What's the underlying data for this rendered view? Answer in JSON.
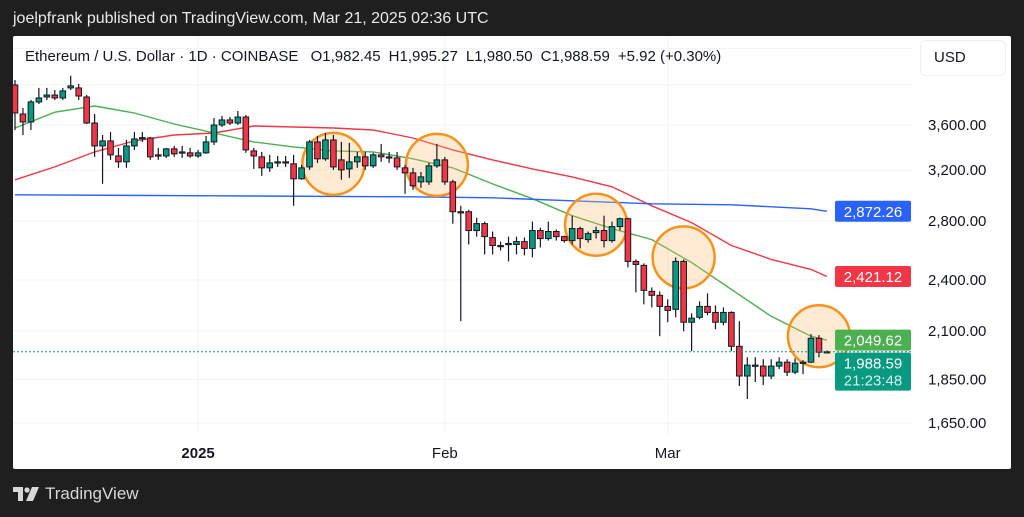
{
  "header": {
    "published_text": "joelpfrank published on TradingView.com, Mar 21, 2025 02:36 UTC"
  },
  "legend": {
    "symbol": "Ethereum / U.S. Dollar · 1D · COINBASE",
    "open": "O1,982.45",
    "high": "H1,995.27",
    "low": "L1,980.50",
    "close": "C1,988.59",
    "change": "+5.92 (+0.30%)"
  },
  "currency_button": "USD",
  "footer": {
    "brand": "TradingView"
  },
  "colors": {
    "up": "#089981",
    "down": "#f23645",
    "ma_fast": "#4caf50",
    "ma_mid": "#f23645",
    "ma_slow": "#2962ff",
    "annotation": "#f7931a",
    "last_price": "#089981"
  },
  "chart_data": {
    "type": "candlestick",
    "scale": "log",
    "grid": true,
    "y_ticks": [
      4400,
      4000,
      3600,
      3200,
      2800,
      2400,
      2100,
      1850,
      1650
    ],
    "y_tick_labels": [
      "",
      "",
      "3,600.00",
      "3,200.00",
      "2,800.00",
      "2,400.00",
      "2,100.00",
      "1,850.00",
      "1,650.00"
    ],
    "x_labels": [
      {
        "date": "2025-01-01",
        "label": "2025",
        "bold": true
      },
      {
        "date": "2025-02-01",
        "label": "Feb",
        "bold": false
      },
      {
        "date": "2025-03-01",
        "label": "Mar",
        "bold": false
      }
    ],
    "candles_fields": [
      "date",
      "open",
      "high",
      "low",
      "close"
    ],
    "candles": [
      [
        "2024-12-09",
        3998,
        4050,
        3553,
        3715
      ],
      [
        "2024-12-10",
        3705,
        3764,
        3507,
        3629
      ],
      [
        "2024-12-11",
        3629,
        3844,
        3553,
        3824
      ],
      [
        "2024-12-12",
        3824,
        3967,
        3804,
        3864
      ],
      [
        "2024-12-13",
        3874,
        3967,
        3844,
        3894
      ],
      [
        "2024-12-14",
        3894,
        3946,
        3844,
        3864
      ],
      [
        "2024-12-15",
        3864,
        3967,
        3844,
        3936
      ],
      [
        "2024-12-16",
        3967,
        4095,
        3946,
        3988
      ],
      [
        "2024-12-17",
        3967,
        4008,
        3844,
        3884
      ],
      [
        "2024-12-18",
        3874,
        3894,
        3610,
        3619
      ],
      [
        "2024-12-19",
        3619,
        3705,
        3312,
        3408
      ],
      [
        "2024-12-20",
        3408,
        3507,
        3086,
        3453
      ],
      [
        "2024-12-21",
        3453,
        3535,
        3286,
        3329
      ],
      [
        "2024-12-22",
        3320,
        3390,
        3218,
        3269
      ],
      [
        "2024-12-23",
        3269,
        3462,
        3218,
        3408
      ],
      [
        "2024-12-24",
        3408,
        3535,
        3373,
        3471
      ],
      [
        "2024-12-25",
        3480,
        3535,
        3444,
        3483
      ],
      [
        "2024-12-26",
        3480,
        3489,
        3286,
        3312
      ],
      [
        "2024-12-27",
        3329,
        3390,
        3286,
        3320
      ],
      [
        "2024-12-28",
        3320,
        3390,
        3303,
        3382
      ],
      [
        "2024-12-29",
        3382,
        3408,
        3312,
        3338
      ],
      [
        "2024-12-30",
        3355,
        3408,
        3303,
        3350
      ],
      [
        "2024-12-31",
        3347,
        3390,
        3303,
        3320
      ],
      [
        "2025-01-01",
        3320,
        3373,
        3303,
        3347
      ],
      [
        "2025-01-02",
        3347,
        3498,
        3338,
        3444
      ],
      [
        "2025-01-03",
        3444,
        3667,
        3417,
        3600
      ],
      [
        "2025-01-04",
        3600,
        3686,
        3581,
        3648
      ],
      [
        "2025-01-05",
        3648,
        3676,
        3600,
        3619
      ],
      [
        "2025-01-06",
        3619,
        3734,
        3600,
        3676
      ],
      [
        "2025-01-07",
        3676,
        3696,
        3347,
        3373
      ],
      [
        "2025-01-08",
        3364,
        3390,
        3209,
        3320
      ],
      [
        "2025-01-09",
        3312,
        3355,
        3151,
        3218
      ],
      [
        "2025-01-10",
        3218,
        3329,
        3184,
        3260
      ],
      [
        "2025-01-11",
        3260,
        3320,
        3226,
        3269
      ],
      [
        "2025-01-12",
        3269,
        3320,
        3226,
        3265
      ],
      [
        "2025-01-13",
        3252,
        3329,
        2914,
        3127
      ],
      [
        "2025-01-14",
        3127,
        3243,
        3119,
        3218
      ],
      [
        "2025-01-15",
        3226,
        3462,
        3201,
        3444
      ],
      [
        "2025-01-16",
        3444,
        3498,
        3260,
        3295
      ],
      [
        "2025-01-17",
        3295,
        3526,
        3278,
        3462
      ],
      [
        "2025-01-18",
        3462,
        3507,
        3201,
        3226
      ],
      [
        "2025-01-19",
        3286,
        3444,
        3119,
        3201
      ],
      [
        "2025-01-20",
        3209,
        3435,
        3135,
        3269
      ],
      [
        "2025-01-21",
        3269,
        3355,
        3218,
        3312
      ],
      [
        "2025-01-22",
        3312,
        3355,
        3201,
        3235
      ],
      [
        "2025-01-23",
        3235,
        3347,
        3218,
        3329
      ],
      [
        "2025-01-24",
        3329,
        3426,
        3269,
        3312
      ],
      [
        "2025-01-25",
        3312,
        3355,
        3260,
        3308
      ],
      [
        "2025-01-26",
        3303,
        3355,
        3201,
        3226
      ],
      [
        "2025-01-27",
        3218,
        3243,
        3007,
        3176
      ],
      [
        "2025-01-28",
        3176,
        3218,
        3038,
        3070
      ],
      [
        "2025-01-29",
        3102,
        3184,
        3054,
        3143
      ],
      [
        "2025-01-30",
        3102,
        3260,
        3078,
        3235
      ],
      [
        "2025-01-31",
        3235,
        3426,
        3218,
        3286
      ],
      [
        "2025-02-01",
        3286,
        3312,
        3078,
        3102
      ],
      [
        "2025-02-02",
        3102,
        3119,
        2781,
        2869
      ],
      [
        "2025-02-03",
        2869,
        2914,
        2154,
        2861
      ],
      [
        "2025-02-04",
        2869,
        2884,
        2633,
        2731
      ],
      [
        "2025-02-05",
        2731,
        2824,
        2688,
        2781
      ],
      [
        "2025-02-06",
        2781,
        2795,
        2565,
        2688
      ],
      [
        "2025-02-07",
        2681,
        2724,
        2565,
        2626
      ],
      [
        "2025-02-08",
        2626,
        2653,
        2592,
        2622
      ],
      [
        "2025-02-09",
        2633,
        2688,
        2519,
        2640
      ],
      [
        "2025-02-10",
        2633,
        2688,
        2565,
        2653
      ],
      [
        "2025-02-11",
        2653,
        2681,
        2559,
        2606
      ],
      [
        "2025-02-12",
        2606,
        2795,
        2546,
        2731
      ],
      [
        "2025-02-13",
        2731,
        2752,
        2613,
        2674
      ],
      [
        "2025-02-14",
        2674,
        2795,
        2660,
        2724
      ],
      [
        "2025-02-15",
        2724,
        2738,
        2660,
        2688
      ],
      [
        "2025-02-16",
        2688,
        2695,
        2646,
        2660
      ],
      [
        "2025-02-17",
        2660,
        2839,
        2633,
        2745
      ],
      [
        "2025-02-18",
        2745,
        2759,
        2606,
        2674
      ],
      [
        "2025-02-19",
        2667,
        2724,
        2646,
        2709
      ],
      [
        "2025-02-20",
        2716,
        2759,
        2674,
        2731
      ],
      [
        "2025-02-21",
        2731,
        2839,
        2613,
        2660
      ],
      [
        "2025-02-22",
        2660,
        2795,
        2646,
        2759
      ],
      [
        "2025-02-23",
        2759,
        2824,
        2731,
        2817
      ],
      [
        "2025-02-24",
        2817,
        2824,
        2480,
        2519
      ],
      [
        "2025-02-25",
        2519,
        2532,
        2323,
        2499
      ],
      [
        "2025-02-26",
        2493,
        2506,
        2251,
        2335
      ],
      [
        "2025-02-27",
        2329,
        2353,
        2233,
        2305
      ],
      [
        "2025-02-28",
        2305,
        2329,
        2071,
        2239
      ],
      [
        "2025-03-01",
        2239,
        2281,
        2148,
        2216
      ],
      [
        "2025-03-02",
        2222,
        2545,
        2176,
        2519
      ],
      [
        "2025-03-03",
        2519,
        2532,
        2098,
        2148
      ],
      [
        "2025-03-04",
        2148,
        2199,
        1992,
        2171
      ],
      [
        "2025-03-05",
        2176,
        2269,
        2165,
        2239
      ],
      [
        "2025-03-06",
        2239,
        2317,
        2188,
        2204
      ],
      [
        "2025-03-07",
        2204,
        2245,
        2109,
        2148
      ],
      [
        "2025-03-08",
        2148,
        2233,
        2131,
        2204
      ],
      [
        "2025-03-09",
        2204,
        2210,
        1992,
        2017
      ],
      [
        "2025-03-10",
        2017,
        2154,
        1818,
        1866
      ],
      [
        "2025-03-11",
        1866,
        1960,
        1757,
        1920
      ],
      [
        "2025-03-12",
        1920,
        1960,
        1837,
        1915
      ],
      [
        "2025-03-13",
        1915,
        1950,
        1822,
        1866
      ],
      [
        "2025-03-14",
        1866,
        1950,
        1851,
        1915
      ],
      [
        "2025-03-15",
        1915,
        1960,
        1900,
        1935
      ],
      [
        "2025-03-16",
        1935,
        1950,
        1866,
        1885
      ],
      [
        "2025-03-17",
        1885,
        1955,
        1875,
        1930
      ],
      [
        "2025-03-18",
        1930,
        1945,
        1875,
        1935
      ],
      [
        "2025-03-19",
        1935,
        2082,
        1930,
        2060
      ],
      [
        "2025-03-20",
        2060,
        2077,
        1960,
        1986
      ],
      [
        "2025-03-21",
        1982.45,
        1995.27,
        1980.5,
        1988.59
      ]
    ],
    "moving_averages": [
      {
        "color_key": "ma_fast",
        "last_label": "2,049.62",
        "points": [
          [
            "2024-12-09",
            3572
          ],
          [
            "2024-12-14",
            3723
          ],
          [
            "2024-12-19",
            3784
          ],
          [
            "2024-12-24",
            3715
          ],
          [
            "2024-12-29",
            3609
          ],
          [
            "2025-01-03",
            3525
          ],
          [
            "2025-01-08",
            3444
          ],
          [
            "2025-01-13",
            3399
          ],
          [
            "2025-01-18",
            3364
          ],
          [
            "2025-01-23",
            3355
          ],
          [
            "2025-01-28",
            3295
          ],
          [
            "2025-02-02",
            3218
          ],
          [
            "2025-02-07",
            3086
          ],
          [
            "2025-02-12",
            2968
          ],
          [
            "2025-02-17",
            2839
          ],
          [
            "2025-02-22",
            2745
          ],
          [
            "2025-02-27",
            2667
          ],
          [
            "2025-03-04",
            2512
          ],
          [
            "2025-03-09",
            2341
          ],
          [
            "2025-03-14",
            2182
          ],
          [
            "2025-03-19",
            2071
          ],
          [
            "2025-03-21",
            2049.62
          ]
        ]
      },
      {
        "color_key": "ma_mid",
        "last_label": "2,421.12",
        "points": [
          [
            "2024-12-09",
            3119
          ],
          [
            "2024-12-14",
            3226
          ],
          [
            "2024-12-19",
            3355
          ],
          [
            "2024-12-24",
            3453
          ],
          [
            "2024-12-29",
            3507
          ],
          [
            "2025-01-03",
            3525
          ],
          [
            "2025-01-08",
            3591
          ],
          [
            "2025-01-13",
            3581
          ],
          [
            "2025-01-18",
            3572
          ],
          [
            "2025-01-23",
            3553
          ],
          [
            "2025-01-28",
            3480
          ],
          [
            "2025-02-02",
            3373
          ],
          [
            "2025-02-07",
            3286
          ],
          [
            "2025-02-12",
            3209
          ],
          [
            "2025-02-17",
            3143
          ],
          [
            "2025-02-22",
            3062
          ],
          [
            "2025-02-27",
            2914
          ],
          [
            "2025-03-04",
            2788
          ],
          [
            "2025-03-09",
            2626
          ],
          [
            "2025-03-14",
            2532
          ],
          [
            "2025-03-19",
            2467
          ],
          [
            "2025-03-21",
            2421.12
          ]
        ]
      },
      {
        "color_key": "ma_slow",
        "last_label": "2,872.26",
        "points": [
          [
            "2024-12-09",
            2999
          ],
          [
            "2025-01-03",
            2991
          ],
          [
            "2025-01-28",
            2983
          ],
          [
            "2025-02-07",
            2975
          ],
          [
            "2025-02-17",
            2952
          ],
          [
            "2025-02-27",
            2929
          ],
          [
            "2025-03-09",
            2921
          ],
          [
            "2025-03-19",
            2891
          ],
          [
            "2025-03-21",
            2872.26
          ]
        ]
      }
    ],
    "last_price": {
      "value": 1988.59,
      "label": "1,988.59",
      "countdown": "21:23:48"
    },
    "annotations": [
      {
        "type": "circle",
        "date": "2025-01-18",
        "price": 3252
      },
      {
        "type": "circle",
        "date": "2025-01-31",
        "price": 3243
      },
      {
        "type": "circle",
        "date": "2025-02-20",
        "price": 2773
      },
      {
        "type": "circle",
        "date": "2025-03-03",
        "price": 2546
      },
      {
        "type": "circle",
        "date": "2025-03-20",
        "price": 2071
      }
    ]
  }
}
